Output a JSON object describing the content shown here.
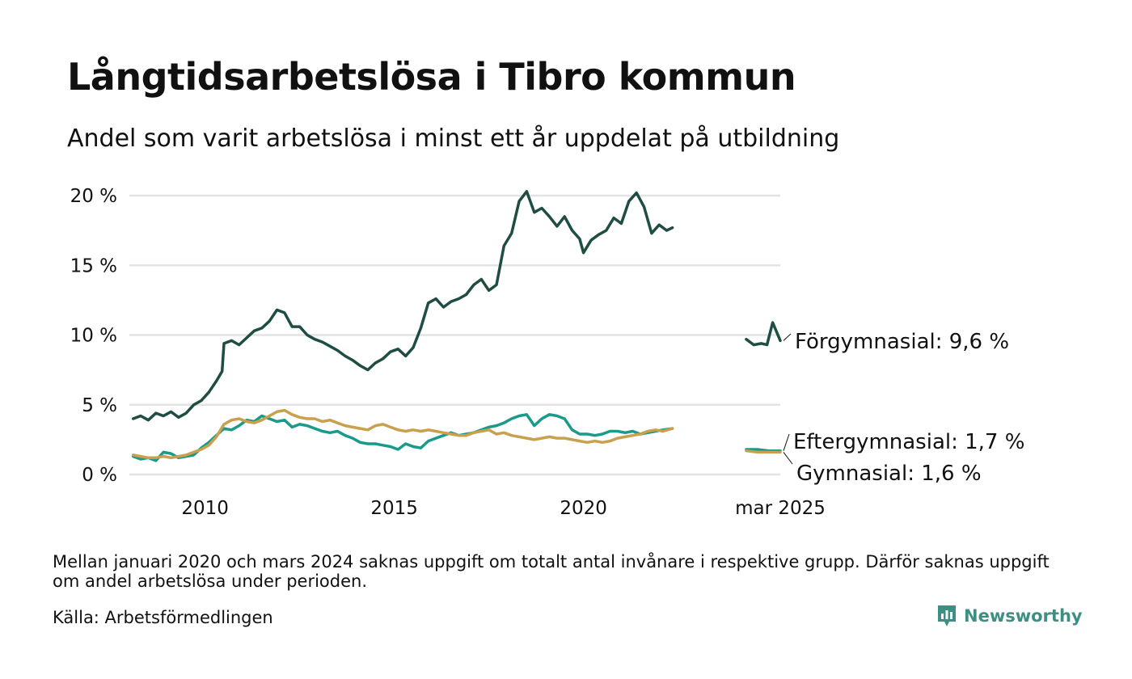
{
  "header": {
    "title": "Långtidsarbetslösa i Tibro kommun",
    "subtitle": "Andel som varit arbetslösa i minst ett år uppdelat på utbildning"
  },
  "footer": {
    "note": "Mellan januari 2020 och mars 2024 saknas uppgift om totalt antal invånare i respektive grupp. Därför saknas uppgift om andel arbetslösa under perioden.",
    "source": "Källa: Arbetsförmedlingen",
    "brand": "Newsworthy"
  },
  "colors": {
    "forgymnasial": "#1f4d44",
    "eftergymnasial": "#1a9a8a",
    "gymnasial": "#c9a04e",
    "grid": "#e3e3e3",
    "brand": "#3d8f84"
  },
  "chart_data": {
    "type": "line",
    "title": "Långtidsarbetslösa i Tibro kommun",
    "subtitle": "Andel som varit arbetslösa i minst ett år uppdelat på utbildning",
    "x_unit": "year",
    "x_tick_labels": [
      {
        "x": 2010,
        "label": "2010"
      },
      {
        "x": 2015,
        "label": "2015"
      },
      {
        "x": 2020,
        "label": "2020"
      },
      {
        "x": 2025.2,
        "label": "mar 2025"
      }
    ],
    "y_ticks": [
      0,
      5,
      10,
      15,
      20
    ],
    "y_tick_labels": [
      "0 %",
      "5 %",
      "10 %",
      "15 %",
      "20 %"
    ],
    "xlim": [
      2008.0,
      2025.2
    ],
    "ylim": [
      0,
      20
    ],
    "grid": true,
    "series": [
      {
        "name": "Förgymnasial",
        "end_label": "Förgymnasial: 9,6 %",
        "color": "#1f4d44",
        "segments": [
          [
            [
              2008.1,
              4.0
            ],
            [
              2008.3,
              4.2
            ],
            [
              2008.5,
              3.9
            ],
            [
              2008.7,
              4.4
            ],
            [
              2008.9,
              4.2
            ],
            [
              2009.1,
              4.5
            ],
            [
              2009.3,
              4.1
            ],
            [
              2009.5,
              4.4
            ],
            [
              2009.7,
              5.0
            ],
            [
              2009.9,
              5.3
            ],
            [
              2010.1,
              5.9
            ],
            [
              2010.3,
              6.7
            ],
            [
              2010.45,
              7.4
            ],
            [
              2010.5,
              9.4
            ],
            [
              2010.7,
              9.6
            ],
            [
              2010.9,
              9.3
            ],
            [
              2011.1,
              9.8
            ],
            [
              2011.3,
              10.3
            ],
            [
              2011.5,
              10.5
            ],
            [
              2011.7,
              11.0
            ],
            [
              2011.9,
              11.8
            ],
            [
              2012.1,
              11.6
            ],
            [
              2012.3,
              10.6
            ],
            [
              2012.5,
              10.6
            ],
            [
              2012.7,
              10.0
            ],
            [
              2012.9,
              9.7
            ],
            [
              2013.1,
              9.5
            ],
            [
              2013.3,
              9.2
            ],
            [
              2013.5,
              8.9
            ],
            [
              2013.7,
              8.5
            ],
            [
              2013.9,
              8.2
            ],
            [
              2014.1,
              7.8
            ],
            [
              2014.3,
              7.5
            ],
            [
              2014.5,
              8.0
            ],
            [
              2014.7,
              8.3
            ],
            [
              2014.9,
              8.8
            ],
            [
              2015.1,
              9.0
            ],
            [
              2015.3,
              8.5
            ],
            [
              2015.5,
              9.1
            ],
            [
              2015.7,
              10.5
            ],
            [
              2015.9,
              12.3
            ],
            [
              2016.1,
              12.6
            ],
            [
              2016.3,
              12.0
            ],
            [
              2016.5,
              12.4
            ],
            [
              2016.7,
              12.6
            ],
            [
              2016.9,
              12.9
            ],
            [
              2017.1,
              13.6
            ],
            [
              2017.3,
              14.0
            ],
            [
              2017.5,
              13.2
            ],
            [
              2017.7,
              13.6
            ],
            [
              2017.9,
              16.4
            ],
            [
              2018.1,
              17.3
            ],
            [
              2018.3,
              19.6
            ],
            [
              2018.5,
              20.3
            ],
            [
              2018.7,
              18.8
            ],
            [
              2018.9,
              19.1
            ],
            [
              2019.1,
              18.5
            ],
            [
              2019.3,
              17.8
            ],
            [
              2019.5,
              18.5
            ],
            [
              2019.7,
              17.5
            ],
            [
              2019.9,
              16.9
            ],
            [
              2020.0,
              15.9
            ],
            [
              2020.2,
              16.8
            ],
            [
              2020.4,
              17.2
            ],
            [
              2020.6,
              17.5
            ],
            [
              2020.8,
              18.4
            ],
            [
              2021.0,
              18.0
            ],
            [
              2021.2,
              19.6
            ],
            [
              2021.4,
              20.2
            ],
            [
              2021.6,
              19.2
            ],
            [
              2021.8,
              17.3
            ],
            [
              2022.0,
              17.9
            ],
            [
              2022.2,
              17.5
            ],
            [
              2022.35,
              17.7
            ]
          ],
          [
            [
              2024.3,
              9.7
            ],
            [
              2024.5,
              9.3
            ],
            [
              2024.7,
              9.4
            ],
            [
              2024.85,
              9.3
            ],
            [
              2025.0,
              10.9
            ],
            [
              2025.2,
              9.6
            ]
          ]
        ]
      },
      {
        "name": "Eftergymnasial",
        "end_label": "Eftergymnasial: 1,7 %",
        "color": "#1a9a8a",
        "segments": [
          [
            [
              2008.1,
              1.3
            ],
            [
              2008.3,
              1.1
            ],
            [
              2008.5,
              1.2
            ],
            [
              2008.7,
              1.0
            ],
            [
              2008.9,
              1.6
            ],
            [
              2009.1,
              1.5
            ],
            [
              2009.3,
              1.2
            ],
            [
              2009.5,
              1.3
            ],
            [
              2009.7,
              1.4
            ],
            [
              2009.9,
              1.9
            ],
            [
              2010.1,
              2.3
            ],
            [
              2010.3,
              2.8
            ],
            [
              2010.5,
              3.3
            ],
            [
              2010.7,
              3.2
            ],
            [
              2010.9,
              3.5
            ],
            [
              2011.1,
              3.9
            ],
            [
              2011.3,
              3.8
            ],
            [
              2011.5,
              4.2
            ],
            [
              2011.7,
              4.0
            ],
            [
              2011.9,
              3.8
            ],
            [
              2012.1,
              3.9
            ],
            [
              2012.3,
              3.4
            ],
            [
              2012.5,
              3.6
            ],
            [
              2012.7,
              3.5
            ],
            [
              2012.9,
              3.3
            ],
            [
              2013.1,
              3.1
            ],
            [
              2013.3,
              3.0
            ],
            [
              2013.5,
              3.1
            ],
            [
              2013.7,
              2.8
            ],
            [
              2013.9,
              2.6
            ],
            [
              2014.1,
              2.3
            ],
            [
              2014.3,
              2.2
            ],
            [
              2014.5,
              2.2
            ],
            [
              2014.7,
              2.1
            ],
            [
              2014.9,
              2.0
            ],
            [
              2015.1,
              1.8
            ],
            [
              2015.3,
              2.2
            ],
            [
              2015.5,
              2.0
            ],
            [
              2015.7,
              1.9
            ],
            [
              2015.9,
              2.4
            ],
            [
              2016.1,
              2.6
            ],
            [
              2016.3,
              2.8
            ],
            [
              2016.5,
              3.0
            ],
            [
              2016.7,
              2.8
            ],
            [
              2016.9,
              2.9
            ],
            [
              2017.1,
              3.0
            ],
            [
              2017.3,
              3.2
            ],
            [
              2017.5,
              3.4
            ],
            [
              2017.7,
              3.5
            ],
            [
              2017.9,
              3.7
            ],
            [
              2018.1,
              4.0
            ],
            [
              2018.3,
              4.2
            ],
            [
              2018.5,
              4.3
            ],
            [
              2018.7,
              3.5
            ],
            [
              2018.9,
              4.0
            ],
            [
              2019.1,
              4.3
            ],
            [
              2019.3,
              4.2
            ],
            [
              2019.5,
              4.0
            ],
            [
              2019.7,
              3.2
            ],
            [
              2019.9,
              2.9
            ],
            [
              2020.1,
              2.9
            ],
            [
              2020.3,
              2.8
            ],
            [
              2020.5,
              2.9
            ],
            [
              2020.7,
              3.1
            ],
            [
              2020.9,
              3.1
            ],
            [
              2021.1,
              3.0
            ],
            [
              2021.3,
              3.1
            ],
            [
              2021.5,
              2.9
            ],
            [
              2021.7,
              3.0
            ],
            [
              2021.9,
              3.1
            ],
            [
              2022.1,
              3.2
            ],
            [
              2022.35,
              3.3
            ]
          ],
          [
            [
              2024.3,
              1.8
            ],
            [
              2024.6,
              1.8
            ],
            [
              2024.9,
              1.7
            ],
            [
              2025.2,
              1.7
            ]
          ]
        ]
      },
      {
        "name": "Gymnasial",
        "end_label": "Gymnasial: 1,6 %",
        "color": "#c9a04e",
        "segments": [
          [
            [
              2008.1,
              1.4
            ],
            [
              2008.3,
              1.3
            ],
            [
              2008.5,
              1.2
            ],
            [
              2008.7,
              1.2
            ],
            [
              2008.9,
              1.3
            ],
            [
              2009.1,
              1.2
            ],
            [
              2009.3,
              1.3
            ],
            [
              2009.5,
              1.4
            ],
            [
              2009.7,
              1.6
            ],
            [
              2009.9,
              1.8
            ],
            [
              2010.1,
              2.1
            ],
            [
              2010.3,
              2.7
            ],
            [
              2010.5,
              3.6
            ],
            [
              2010.7,
              3.9
            ],
            [
              2010.9,
              4.0
            ],
            [
              2011.1,
              3.8
            ],
            [
              2011.3,
              3.7
            ],
            [
              2011.5,
              3.9
            ],
            [
              2011.7,
              4.2
            ],
            [
              2011.9,
              4.5
            ],
            [
              2012.1,
              4.6
            ],
            [
              2012.3,
              4.3
            ],
            [
              2012.5,
              4.1
            ],
            [
              2012.7,
              4.0
            ],
            [
              2012.9,
              4.0
            ],
            [
              2013.1,
              3.8
            ],
            [
              2013.3,
              3.9
            ],
            [
              2013.5,
              3.7
            ],
            [
              2013.7,
              3.5
            ],
            [
              2013.9,
              3.4
            ],
            [
              2014.1,
              3.3
            ],
            [
              2014.3,
              3.2
            ],
            [
              2014.5,
              3.5
            ],
            [
              2014.7,
              3.6
            ],
            [
              2014.9,
              3.4
            ],
            [
              2015.1,
              3.2
            ],
            [
              2015.3,
              3.1
            ],
            [
              2015.5,
              3.2
            ],
            [
              2015.7,
              3.1
            ],
            [
              2015.9,
              3.2
            ],
            [
              2016.1,
              3.1
            ],
            [
              2016.3,
              3.0
            ],
            [
              2016.5,
              2.9
            ],
            [
              2016.7,
              2.8
            ],
            [
              2016.9,
              2.8
            ],
            [
              2017.1,
              3.0
            ],
            [
              2017.3,
              3.1
            ],
            [
              2017.5,
              3.2
            ],
            [
              2017.7,
              2.9
            ],
            [
              2017.9,
              3.0
            ],
            [
              2018.1,
              2.8
            ],
            [
              2018.3,
              2.7
            ],
            [
              2018.5,
              2.6
            ],
            [
              2018.7,
              2.5
            ],
            [
              2018.9,
              2.6
            ],
            [
              2019.1,
              2.7
            ],
            [
              2019.3,
              2.6
            ],
            [
              2019.5,
              2.6
            ],
            [
              2019.7,
              2.5
            ],
            [
              2019.9,
              2.4
            ],
            [
              2020.1,
              2.3
            ],
            [
              2020.3,
              2.4
            ],
            [
              2020.5,
              2.3
            ],
            [
              2020.7,
              2.4
            ],
            [
              2020.9,
              2.6
            ],
            [
              2021.1,
              2.7
            ],
            [
              2021.3,
              2.8
            ],
            [
              2021.5,
              2.9
            ],
            [
              2021.7,
              3.1
            ],
            [
              2021.9,
              3.2
            ],
            [
              2022.1,
              3.1
            ],
            [
              2022.35,
              3.3
            ]
          ],
          [
            [
              2024.3,
              1.7
            ],
            [
              2024.6,
              1.6
            ],
            [
              2024.9,
              1.6
            ],
            [
              2025.2,
              1.6
            ]
          ]
        ]
      }
    ]
  }
}
